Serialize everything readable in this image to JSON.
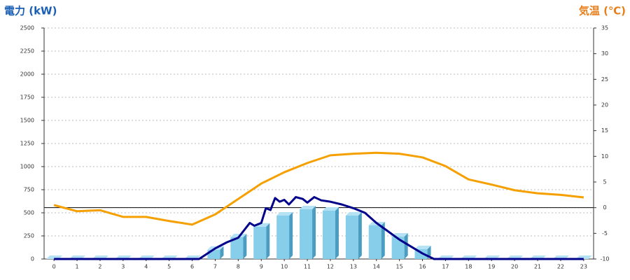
{
  "chart_data": {
    "type": "bar",
    "y_axis_title": "電力 (kW)",
    "y2_axis_title": "気温 (℃)",
    "x": [
      0,
      1,
      2,
      3,
      4,
      5,
      6,
      7,
      8,
      9,
      10,
      11,
      12,
      13,
      14,
      15,
      16,
      17,
      18,
      19,
      20,
      21,
      22,
      23
    ],
    "xlim": [
      -0.43,
      23.43
    ],
    "ylim": [
      0,
      2500
    ],
    "yticks": [
      0,
      250,
      500,
      750,
      1000,
      1250,
      1500,
      1750,
      2000,
      2250,
      2500
    ],
    "y2lim": [
      -10,
      35
    ],
    "y2ticks": [
      -10,
      -5,
      0,
      5,
      10,
      15,
      20,
      25,
      30,
      35
    ],
    "grid": true,
    "series": [
      {
        "type": "bar",
        "color": "#87ceeb",
        "values": [
          0,
          0,
          0,
          0,
          0,
          0,
          0,
          100,
          235,
          350,
          470,
          538,
          523,
          470,
          364,
          242,
          106,
          0,
          0,
          0,
          0,
          0,
          0,
          0
        ]
      },
      {
        "type": "line",
        "color": "#00008b",
        "x": [
          0,
          6.3,
          7,
          7.5,
          8,
          8.5,
          8.7,
          9,
          9.2,
          9.4,
          9.6,
          9.8,
          10,
          10.2,
          10.5,
          10.8,
          11,
          11.3,
          11.6,
          12,
          12.5,
          13,
          13.5,
          14,
          14.5,
          15,
          15.5,
          16,
          16.5,
          23
        ],
        "values": [
          0,
          0,
          115,
          180,
          230,
          390,
          360,
          390,
          550,
          530,
          660,
          620,
          640,
          590,
          670,
          650,
          610,
          670,
          635,
          620,
          590,
          550,
          500,
          390,
          300,
          210,
          135,
          60,
          0,
          0
        ]
      },
      {
        "type": "line",
        "axis": "y2",
        "color": "#f5a000",
        "values": [
          0.5,
          -0.7,
          -0.5,
          -1.8,
          -1.8,
          -2.6,
          -3.3,
          -1.3,
          1.7,
          4.7,
          6.9,
          8.7,
          10.2,
          10.5,
          10.7,
          10.5,
          9.8,
          8.1,
          5.5,
          4.5,
          3.4,
          2.8,
          2.5,
          2.0
        ]
      }
    ]
  }
}
